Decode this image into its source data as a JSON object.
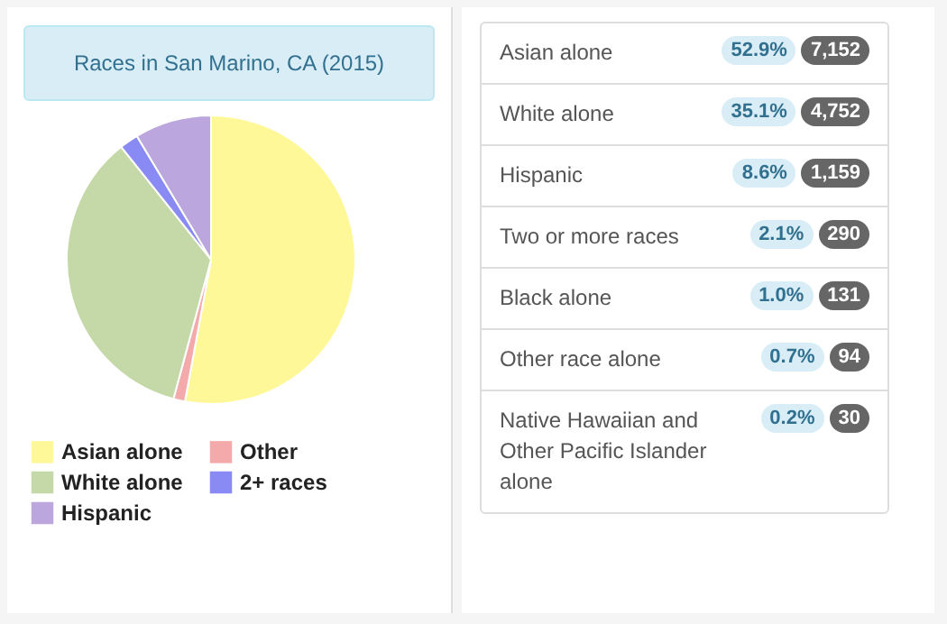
{
  "chart_data": [
    {
      "type": "pie",
      "title": "Races in San Marino, CA (2015)",
      "categories": [
        "Asian alone",
        "Other",
        "White alone",
        "2+ races",
        "Hispanic"
      ],
      "values": [
        52.9,
        1.3,
        35.1,
        2.1,
        8.6
      ],
      "colors": [
        "#fff899",
        "#f4aaaa",
        "#c5d9a8",
        "#8a8af5",
        "#bba6dd"
      ],
      "legend": "bottom"
    },
    {
      "type": "other",
      "categories": [
        "Asian alone",
        "White alone",
        "Hispanic",
        "Two or more races",
        "Black alone",
        "Other race alone",
        "Native Hawaiian and Other Pacific Islander alone"
      ],
      "series": [
        {
          "values": [
            52.9,
            35.1,
            8.6,
            2.1,
            1.0,
            0.7,
            0.2
          ],
          "value_labels": [
            "52.9%",
            "35.1%",
            "8.6%",
            "2.1%",
            "1.0%",
            "0.7%",
            "0.2%"
          ]
        },
        {
          "values": [
            7152,
            4752,
            1159,
            290,
            131,
            94,
            30
          ],
          "value_labels": [
            "7,152",
            "4,752",
            "1,159",
            "290",
            "131",
            "94",
            "30"
          ]
        }
      ],
      "data_labels": true
    }
  ]
}
